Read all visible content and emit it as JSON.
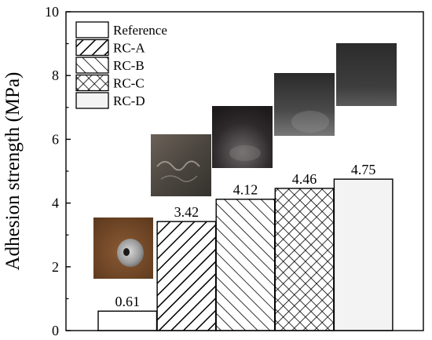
{
  "chart_data": {
    "type": "bar",
    "title": "",
    "xlabel": "",
    "ylabel": "Adhesion strength (MPa)",
    "ylim": [
      0,
      10
    ],
    "yticks": [
      0,
      2,
      4,
      6,
      8,
      10
    ],
    "grid": false,
    "legend_position": "top-left",
    "categories": [
      "Reference",
      "RC-A",
      "RC-B",
      "RC-C",
      "RC-D"
    ],
    "values": [
      0.61,
      3.42,
      4.12,
      4.46,
      4.75
    ],
    "data_labels": [
      "0.61",
      "3.42",
      "4.12",
      "4.46",
      "4.75"
    ],
    "legend": [
      "Reference",
      "RC-A",
      "RC-B",
      "RC-C",
      "RC-D"
    ],
    "patterns": [
      "none",
      "diagonal-up",
      "diagonal-down",
      "crosshatch",
      "solid-light"
    ],
    "fill_colors": [
      "#ffffff",
      "#ffffff",
      "#ffffff",
      "#ffffff",
      "#f3f3f3"
    ]
  }
}
